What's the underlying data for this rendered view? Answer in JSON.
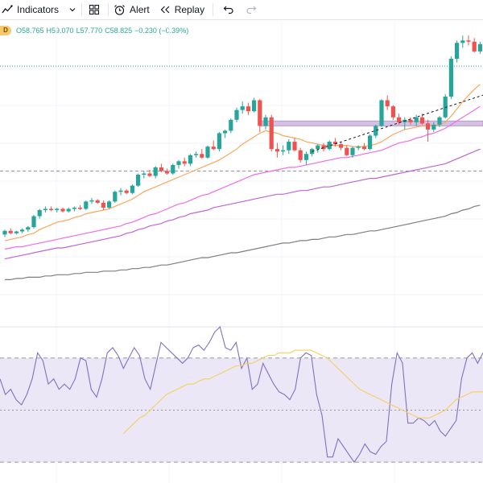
{
  "toolbar": {
    "indicators_label": "Indicators",
    "alert_label": "Alert",
    "replay_label": "Replay"
  },
  "legend": {
    "interval_badge": "D",
    "open": "O58.765",
    "high": "H59.070",
    "low": "L57.770",
    "close": "C58.825",
    "change": "−0.230 (−0.39%)"
  },
  "colors": {
    "up": "#26a69a",
    "down": "#ef5350",
    "ema_fast": "#f9a75b",
    "ma_mid": "#f26ce8",
    "ma_slow": "#c165d4",
    "ma_long": "#7e7e7e",
    "rsi_line": "#7e72c1",
    "rsi_ma": "#f4d05c",
    "rsi_band": "#ebe7f7",
    "resistance_zone": "#cdb5dc"
  },
  "chart_data": [
    {
      "type": "candlestick",
      "ohlc": [
        [
          59.0,
          59.4,
          58.8,
          59.3
        ],
        [
          59.3,
          59.5,
          59.0,
          59.1
        ],
        [
          59.1,
          59.3,
          59.0,
          59.25
        ],
        [
          59.25,
          59.5,
          59.1,
          59.4
        ],
        [
          59.4,
          59.7,
          59.2,
          59.6
        ],
        [
          59.6,
          60.6,
          59.5,
          60.5
        ],
        [
          60.5,
          61.1,
          60.3,
          61.0
        ],
        [
          61.0,
          61.3,
          60.8,
          61.1
        ],
        [
          61.1,
          61.3,
          60.9,
          61.0
        ],
        [
          61.0,
          61.2,
          60.8,
          61.1
        ],
        [
          61.1,
          61.2,
          60.8,
          60.9
        ],
        [
          60.9,
          61.2,
          60.8,
          61.1
        ],
        [
          61.1,
          61.3,
          60.9,
          61.2
        ],
        [
          61.2,
          61.4,
          61.0,
          61.1
        ],
        [
          61.1,
          61.8,
          61.0,
          61.7
        ],
        [
          61.7,
          62.0,
          61.5,
          61.8
        ],
        [
          61.8,
          61.9,
          61.5,
          61.6
        ],
        [
          61.6,
          61.8,
          61.0,
          61.2
        ],
        [
          61.2,
          61.8,
          61.1,
          61.7
        ],
        [
          61.7,
          62.6,
          61.6,
          62.5
        ],
        [
          62.5,
          62.8,
          62.2,
          62.6
        ],
        [
          62.6,
          62.7,
          62.3,
          62.4
        ],
        [
          62.4,
          63.1,
          62.3,
          63.0
        ],
        [
          63.0,
          64.0,
          62.9,
          63.9
        ],
        [
          63.9,
          64.2,
          63.6,
          64.0
        ],
        [
          64.0,
          64.3,
          63.7,
          63.8
        ],
        [
          63.8,
          64.6,
          63.6,
          64.5
        ],
        [
          64.5,
          64.8,
          64.1,
          64.2
        ],
        [
          64.2,
          64.4,
          63.9,
          64.0
        ],
        [
          64.0,
          64.8,
          63.9,
          64.7
        ],
        [
          64.7,
          65.1,
          64.4,
          65.0
        ],
        [
          65.0,
          65.3,
          64.6,
          64.8
        ],
        [
          64.8,
          65.6,
          64.6,
          65.5
        ],
        [
          65.5,
          65.8,
          65.3,
          65.6
        ],
        [
          65.6,
          66.0,
          65.2,
          65.3
        ],
        [
          65.3,
          66.3,
          65.2,
          66.2
        ],
        [
          66.2,
          66.7,
          65.9,
          66.0
        ],
        [
          66.0,
          67.4,
          65.8,
          67.3
        ],
        [
          67.3,
          67.6,
          66.9,
          67.5
        ],
        [
          67.5,
          68.5,
          67.3,
          68.4
        ],
        [
          68.4,
          69.4,
          68.2,
          69.2
        ],
        [
          69.2,
          69.9,
          68.9,
          69.5
        ],
        [
          69.5,
          69.8,
          68.8,
          69.1
        ],
        [
          69.1,
          70.2,
          69.0,
          70.0
        ],
        [
          70.0,
          70.1,
          67.4,
          67.9
        ],
        [
          67.9,
          68.8,
          67.6,
          68.6
        ],
        [
          68.6,
          68.8,
          65.8,
          66.0
        ],
        [
          66.0,
          66.5,
          65.3,
          65.8
        ],
        [
          65.8,
          66.3,
          65.5,
          65.9
        ],
        [
          65.9,
          66.8,
          65.6,
          66.6
        ],
        [
          66.6,
          66.9,
          65.8,
          65.9
        ],
        [
          65.9,
          66.1,
          64.9,
          65.1
        ],
        [
          65.1,
          65.8,
          64.7,
          65.6
        ],
        [
          65.6,
          66.1,
          65.4,
          66.0
        ],
        [
          66.0,
          66.4,
          65.7,
          66.3
        ],
        [
          66.3,
          66.5,
          65.8,
          66.0
        ],
        [
          66.0,
          66.7,
          65.9,
          66.6
        ],
        [
          66.6,
          66.9,
          66.2,
          66.4
        ],
        [
          66.4,
          66.6,
          65.9,
          66.1
        ],
        [
          66.1,
          66.3,
          65.4,
          65.5
        ],
        [
          65.5,
          66.2,
          65.3,
          66.1
        ],
        [
          66.1,
          66.3,
          65.9,
          66.2
        ],
        [
          66.2,
          66.5,
          65.9,
          66.0
        ],
        [
          66.0,
          67.2,
          65.9,
          67.1
        ],
        [
          67.1,
          68.0,
          66.9,
          67.9
        ],
        [
          67.9,
          70.1,
          67.8,
          70.0
        ],
        [
          70.0,
          70.4,
          69.2,
          69.5
        ],
        [
          69.5,
          69.6,
          68.4,
          68.6
        ],
        [
          68.6,
          68.9,
          68.0,
          68.2
        ],
        [
          68.2,
          68.6,
          67.6,
          68.4
        ],
        [
          68.4,
          68.6,
          68.0,
          68.2
        ],
        [
          68.2,
          68.8,
          67.9,
          68.6
        ],
        [
          68.6,
          68.9,
          68.0,
          68.1
        ],
        [
          68.1,
          68.4,
          66.6,
          67.6
        ],
        [
          67.6,
          68.2,
          67.4,
          68.0
        ],
        [
          68.0,
          68.7,
          67.8,
          68.6
        ],
        [
          68.6,
          70.5,
          68.5,
          70.3
        ],
        [
          70.3,
          73.6,
          70.1,
          73.4
        ],
        [
          73.4,
          74.9,
          73.1,
          74.7
        ],
        [
          74.7,
          75.3,
          74.3,
          74.9
        ],
        [
          74.9,
          75.3,
          74.5,
          74.8
        ],
        [
          74.8,
          75.1,
          73.9,
          74.0
        ],
        [
          74.0,
          74.8,
          73.8,
          74.6
        ]
      ],
      "moving_averages": [
        {
          "key": "ema_fast",
          "color": "#f9a75b",
          "values": [
            58.5,
            58.6,
            58.7,
            58.8,
            59.0,
            59.1,
            59.4,
            59.6,
            59.8,
            60.0,
            60.1,
            60.2,
            60.4,
            60.5,
            60.7,
            60.8,
            60.9,
            61.0,
            61.1,
            61.3,
            61.5,
            61.7,
            61.9,
            62.2,
            62.5,
            62.7,
            62.9,
            63.1,
            63.3,
            63.5,
            63.7,
            63.9,
            64.1,
            64.3,
            64.5,
            64.7,
            64.9,
            65.1,
            65.4,
            65.7,
            66.0,
            66.4,
            66.7,
            67.0,
            67.3,
            67.5,
            67.4,
            67.3,
            67.1,
            67.0,
            66.9,
            66.8,
            66.6,
            66.5,
            66.4,
            66.3,
            66.3,
            66.3,
            66.3,
            66.3,
            66.2,
            66.2,
            66.2,
            66.3,
            66.4,
            66.6,
            66.9,
            67.2,
            67.4,
            67.6,
            67.7,
            67.8,
            67.9,
            67.9,
            67.9,
            68.0,
            68.2,
            68.7,
            69.3,
            69.9,
            70.4,
            70.9,
            71.3
          ]
        },
        {
          "key": "ma_mid",
          "color": "#f26ce8",
          "values": [
            57.8,
            57.9,
            58.0,
            58.0,
            58.1,
            58.2,
            58.3,
            58.4,
            58.5,
            58.6,
            58.7,
            58.8,
            58.9,
            59.0,
            59.1,
            59.2,
            59.3,
            59.4,
            59.5,
            59.6,
            59.7,
            59.9,
            60.0,
            60.2,
            60.4,
            60.6,
            60.7,
            60.9,
            61.1,
            61.3,
            61.5,
            61.6,
            61.8,
            62.0,
            62.2,
            62.3,
            62.5,
            62.7,
            62.9,
            63.1,
            63.3,
            63.5,
            63.7,
            63.9,
            64.0,
            64.1,
            64.2,
            64.3,
            64.4,
            64.5,
            64.5,
            64.6,
            64.7,
            64.8,
            64.9,
            65.0,
            65.1,
            65.2,
            65.3,
            65.3,
            65.4,
            65.5,
            65.6,
            65.7,
            65.8,
            65.9,
            66.1,
            66.3,
            66.5,
            66.6,
            66.7,
            66.9,
            67.0,
            67.2,
            67.3,
            67.5,
            67.7,
            68.0,
            68.3,
            68.6,
            68.9,
            69.2,
            69.5
          ]
        },
        {
          "key": "ma_slow",
          "color": "#c165d4",
          "values": [
            57.0,
            57.1,
            57.2,
            57.3,
            57.4,
            57.5,
            57.6,
            57.7,
            57.8,
            57.9,
            57.9,
            58.0,
            58.1,
            58.2,
            58.3,
            58.4,
            58.5,
            58.6,
            58.7,
            58.8,
            58.9,
            59.1,
            59.2,
            59.4,
            59.5,
            59.7,
            59.8,
            59.9,
            60.1,
            60.2,
            60.4,
            60.5,
            60.7,
            60.8,
            60.9,
            61.0,
            61.2,
            61.3,
            61.4,
            61.5,
            61.6,
            61.7,
            61.8,
            61.9,
            62.0,
            62.1,
            62.2,
            62.3,
            62.3,
            62.4,
            62.5,
            62.6,
            62.6,
            62.7,
            62.8,
            62.9,
            62.9,
            63.0,
            63.1,
            63.2,
            63.3,
            63.4,
            63.5,
            63.6,
            63.6,
            63.7,
            63.8,
            63.9,
            64.0,
            64.1,
            64.2,
            64.3,
            64.4,
            64.5,
            64.6,
            64.7,
            64.8,
            65.0,
            65.2,
            65.4,
            65.6,
            65.8,
            66.0
          ]
        },
        {
          "key": "ma_long",
          "color": "#7e7e7e",
          "values": [
            55.3,
            55.3,
            55.4,
            55.4,
            55.5,
            55.5,
            55.5,
            55.6,
            55.6,
            55.7,
            55.7,
            55.7,
            55.8,
            55.8,
            55.9,
            55.9,
            55.9,
            56.0,
            56.0,
            56.0,
            56.1,
            56.1,
            56.2,
            56.2,
            56.3,
            56.3,
            56.4,
            56.5,
            56.5,
            56.6,
            56.7,
            56.8,
            56.9,
            57.0,
            57.1,
            57.1,
            57.2,
            57.3,
            57.4,
            57.5,
            57.5,
            57.6,
            57.7,
            57.8,
            57.9,
            58.0,
            58.1,
            58.2,
            58.3,
            58.3,
            58.4,
            58.5,
            58.5,
            58.6,
            58.6,
            58.7,
            58.8,
            58.8,
            58.9,
            59.0,
            59.0,
            59.1,
            59.2,
            59.3,
            59.3,
            59.4,
            59.5,
            59.6,
            59.7,
            59.8,
            59.9,
            60.0,
            60.1,
            60.2,
            60.3,
            60.4,
            60.5,
            60.7,
            60.8,
            61.0,
            61.1,
            61.3,
            61.4
          ]
        }
      ],
      "resistance_zone": {
        "from": 67.9,
        "to": 68.3,
        "start_bar": 44
      },
      "trendline": {
        "start_bar": 53,
        "start_price": 65.8,
        "end_bar": 83,
        "end_price": 70.5
      },
      "horizontal_levels": [
        72.8,
        64.2
      ],
      "ylim": [
        51.5,
        76.5
      ]
    },
    {
      "type": "line",
      "title": "",
      "ylim": [
        22,
        82
      ],
      "levels": [
        70,
        50,
        30
      ],
      "series": [
        {
          "key": "rsi",
          "color": "#7e72c1",
          "values": [
            62,
            56,
            58,
            54,
            52,
            56,
            62,
            72,
            69,
            60,
            62,
            58,
            60,
            58,
            62,
            70,
            69,
            58,
            55,
            62,
            72,
            74,
            71,
            66,
            70,
            74,
            71,
            62,
            58,
            67,
            76,
            74,
            72,
            70,
            68,
            70,
            74,
            75,
            73,
            76,
            80,
            82,
            74,
            73,
            76,
            66,
            70,
            58,
            60,
            68,
            64,
            60,
            57,
            56,
            54,
            58,
            70,
            72,
            71,
            56,
            48,
            32,
            32,
            39,
            36,
            33,
            30,
            33,
            37,
            34,
            33,
            36,
            38,
            60,
            72,
            68,
            45,
            45,
            47,
            46,
            44,
            46,
            42,
            40,
            43,
            46,
            62,
            70,
            72,
            68,
            72
          ]
        },
        {
          "key": "rsi_ma",
          "color": "#f4d05c",
          "values": [
            41,
            43,
            45,
            47,
            48,
            50,
            52,
            54,
            56,
            57,
            58,
            59,
            60,
            60,
            61,
            62,
            62,
            63,
            64,
            65,
            66,
            67,
            67,
            68,
            68,
            69,
            70,
            71,
            71,
            72,
            72,
            72,
            73,
            73,
            73,
            73,
            72,
            71,
            70,
            68,
            66,
            64,
            62,
            60,
            58,
            57,
            56,
            55,
            54,
            53,
            52,
            51,
            50,
            49,
            48,
            47,
            47,
            47,
            48,
            49,
            50,
            52,
            54,
            55,
            56,
            57,
            57,
            57
          ]
        }
      ]
    }
  ]
}
